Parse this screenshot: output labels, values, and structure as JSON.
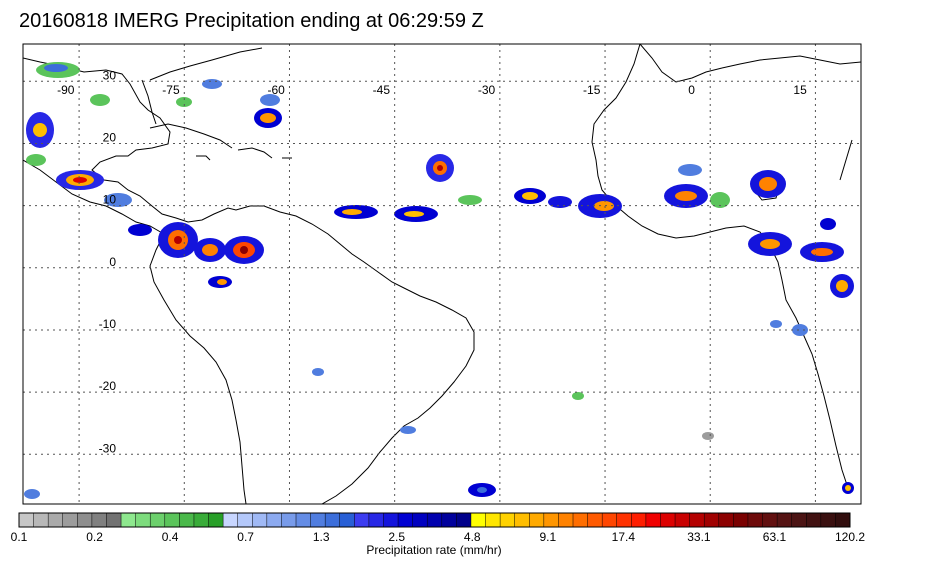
{
  "title": "20160818 IMERG Precipitation ending at 06:29:59 Z",
  "map": {
    "lon_ticks": [
      "-90",
      "-75",
      "-60",
      "-45",
      "-30",
      "-15",
      "0",
      "15"
    ],
    "lat_ticks": [
      "30",
      "20",
      "10",
      "0",
      "-10",
      "-20",
      "-30"
    ]
  },
  "colorbar": {
    "label": "Precipitation rate (mm/hr)",
    "tick_labels": [
      "0.1",
      "0.2",
      "0.4",
      "0.7",
      "1.3",
      "2.5",
      "4.8",
      "9.1",
      "17.4",
      "33.1",
      "63.1",
      "120.2"
    ],
    "colors": [
      "#c6c6c6",
      "#b8b8b8",
      "#aaaaaa",
      "#9c9c9c",
      "#8e8e8e",
      "#808080",
      "#727272",
      "#8ee88e",
      "#7ddc7d",
      "#6cd06c",
      "#5bc45b",
      "#4ab84a",
      "#39ac39",
      "#289f28",
      "#c8d6ff",
      "#b4c8fa",
      "#a0b9f5",
      "#8caaf0",
      "#789bea",
      "#648ce5",
      "#507ddf",
      "#3c6eda",
      "#285fd5",
      "#3c3cf0",
      "#2828e6",
      "#1414dc",
      "#0000d2",
      "#0000c0",
      "#0000ae",
      "#00009c",
      "#00008a",
      "#ffff00",
      "#ffe600",
      "#ffd200",
      "#ffbe00",
      "#ffaa00",
      "#ff9600",
      "#ff8200",
      "#ff6e00",
      "#ff5a00",
      "#ff4600",
      "#ff3200",
      "#ff1e00",
      "#f00000",
      "#dc0000",
      "#c80000",
      "#b40000",
      "#a00000",
      "#8c0000",
      "#7a0000",
      "#6e0a0a",
      "#621010",
      "#561414",
      "#4c1414",
      "#421212",
      "#3a1010",
      "#320e0e"
    ]
  }
}
